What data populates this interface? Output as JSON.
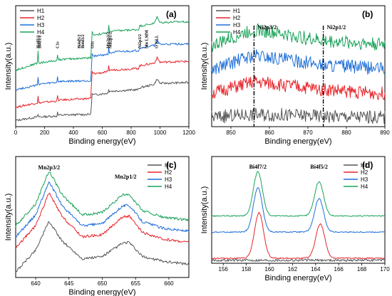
{
  "colors": {
    "H1": "#555555",
    "H2": "#e8242a",
    "H3": "#1f6fd8",
    "H4": "#1aa35a"
  },
  "chart_data": [
    {
      "id": "a",
      "type": "line",
      "panel_label": "(a)",
      "xlabel": "Binding energy(eV)",
      "ylabel": "Intensity(a.u.)",
      "xlim": [
        0,
        1200
      ],
      "xticks": [
        0,
        200,
        400,
        600,
        800,
        1000,
        1200
      ],
      "legend": {
        "placement": "top-left",
        "entries": [
          "H1",
          "H2",
          "H3",
          "H4"
        ]
      },
      "series": [
        {
          "name": "H1",
          "points": [
            [
              0,
              0.05
            ],
            [
              150,
              0.09
            ],
            [
              155,
              0.12
            ],
            [
              160,
              0.09
            ],
            [
              285,
              0.1
            ],
            [
              290,
              0.14
            ],
            [
              295,
              0.11
            ],
            [
              520,
              0.12
            ],
            [
              530,
              0.35
            ],
            [
              540,
              0.34
            ],
            [
              640,
              0.36
            ],
            [
              645,
              0.41
            ],
            [
              650,
              0.38
            ],
            [
              850,
              0.4
            ],
            [
              860,
              0.42
            ],
            [
              960,
              0.46
            ],
            [
              980,
              0.52
            ],
            [
              1000,
              0.47
            ],
            [
              1200,
              0.48
            ]
          ]
        },
        {
          "name": "H2",
          "points": [
            [
              0,
              0.2
            ],
            [
              150,
              0.25
            ],
            [
              155,
              0.32
            ],
            [
              160,
              0.25
            ],
            [
              285,
              0.27
            ],
            [
              290,
              0.33
            ],
            [
              295,
              0.28
            ],
            [
              520,
              0.3
            ],
            [
              530,
              0.6
            ],
            [
              540,
              0.58
            ],
            [
              640,
              0.6
            ],
            [
              645,
              0.66
            ],
            [
              650,
              0.62
            ],
            [
              850,
              0.64
            ],
            [
              860,
              0.67
            ],
            [
              960,
              0.7
            ],
            [
              980,
              0.76
            ],
            [
              1000,
              0.71
            ],
            [
              1200,
              0.72
            ]
          ]
        },
        {
          "name": "H3",
          "points": [
            [
              0,
              0.4
            ],
            [
              150,
              0.45
            ],
            [
              155,
              0.55
            ],
            [
              160,
              0.46
            ],
            [
              285,
              0.48
            ],
            [
              290,
              0.55
            ],
            [
              295,
              0.49
            ],
            [
              520,
              0.5
            ],
            [
              530,
              0.8
            ],
            [
              540,
              0.78
            ],
            [
              640,
              0.8
            ],
            [
              645,
              0.87
            ],
            [
              650,
              0.82
            ],
            [
              850,
              0.84
            ],
            [
              860,
              0.87
            ],
            [
              960,
              0.9
            ],
            [
              980,
              0.96
            ],
            [
              1000,
              0.91
            ],
            [
              1200,
              0.92
            ]
          ]
        },
        {
          "name": "H4",
          "points": [
            [
              0,
              0.62
            ],
            [
              150,
              0.7
            ],
            [
              155,
              0.84
            ],
            [
              160,
              0.7
            ],
            [
              285,
              0.73
            ],
            [
              290,
              0.8
            ],
            [
              295,
              0.74
            ],
            [
              520,
              0.76
            ],
            [
              530,
              1.05
            ],
            [
              540,
              1.02
            ],
            [
              640,
              1.04
            ],
            [
              645,
              1.12
            ],
            [
              650,
              1.06
            ],
            [
              850,
              1.08
            ],
            [
              860,
              1.12
            ],
            [
              960,
              1.15
            ],
            [
              980,
              1.22
            ],
            [
              1000,
              1.16
            ],
            [
              1200,
              1.17
            ]
          ]
        }
      ],
      "annotations": [
        {
          "x": 155,
          "text": "Bi4f7/2"
        },
        {
          "x": 165,
          "text": "Bi4f5/2"
        },
        {
          "x": 290,
          "text": "C1s"
        },
        {
          "x": 440,
          "text": "Bi4d5/2"
        },
        {
          "x": 465,
          "text": "Bi4d3/2"
        },
        {
          "x": 530,
          "text": "O1s"
        },
        {
          "x": 640,
          "text": "Mn2p3/2"
        },
        {
          "x": 655,
          "text": "Mn2p1/2"
        },
        {
          "x": 860,
          "text": "Ni2p3/2"
        },
        {
          "x": 905,
          "text": "Mn LMM"
        },
        {
          "x": 975,
          "text": "O KLL"
        }
      ]
    },
    {
      "id": "b",
      "type": "line",
      "panel_label": "(b)",
      "xlabel": "Binding energy(eV)",
      "ylabel": "Intensity(a.u.)",
      "xlim": [
        845,
        890
      ],
      "xticks": [
        850,
        860,
        870,
        880,
        890
      ],
      "legend": {
        "placement": "top-left",
        "entries": [
          "H1",
          "H2",
          "H3",
          "H4"
        ]
      },
      "series": [
        {
          "name": "H1",
          "points": [
            [
              845,
              0.05
            ],
            [
              856,
              0.08
            ],
            [
              874,
              0.06
            ],
            [
              888,
              0.05
            ]
          ]
        },
        {
          "name": "H2",
          "points": [
            [
              845,
              0.3
            ],
            [
              856,
              0.42
            ],
            [
              874,
              0.34
            ],
            [
              888,
              0.3
            ]
          ]
        },
        {
          "name": "H3",
          "points": [
            [
              845,
              0.55
            ],
            [
              856,
              0.7
            ],
            [
              874,
              0.6
            ],
            [
              888,
              0.56
            ]
          ]
        },
        {
          "name": "H4",
          "points": [
            [
              845,
              0.8
            ],
            [
              856,
              0.97
            ],
            [
              874,
              0.85
            ],
            [
              888,
              0.82
            ]
          ]
        }
      ],
      "annotations": [
        {
          "x": 856,
          "text": "Ni2p3/2"
        },
        {
          "x": 874,
          "text": "Ni2p1/2"
        }
      ]
    },
    {
      "id": "c",
      "type": "line",
      "panel_label": "(c)",
      "xlabel": "Binding energy(eV)",
      "ylabel": "Intensity(a.u.)",
      "xlim": [
        637,
        663
      ],
      "xticks": [
        640,
        645,
        650,
        655,
        660
      ],
      "legend": {
        "placement": "top-right",
        "entries": [
          "H1",
          "H2",
          "H3",
          "H4"
        ]
      },
      "series": [
        {
          "name": "H1",
          "points": [
            [
              637,
              0.0
            ],
            [
              640,
              0.2
            ],
            [
              642,
              0.46
            ],
            [
              644,
              0.28
            ],
            [
              647,
              0.12
            ],
            [
              650,
              0.14
            ],
            [
              653,
              0.26
            ],
            [
              654,
              0.27
            ],
            [
              656,
              0.14
            ],
            [
              659,
              0.1
            ],
            [
              663,
              0.07
            ]
          ]
        },
        {
          "name": "H2",
          "points": [
            [
              637,
              0.22
            ],
            [
              640,
              0.42
            ],
            [
              642,
              0.72
            ],
            [
              644,
              0.5
            ],
            [
              647,
              0.32
            ],
            [
              650,
              0.34
            ],
            [
              653,
              0.5
            ],
            [
              654,
              0.51
            ],
            [
              656,
              0.36
            ],
            [
              659,
              0.3
            ],
            [
              663,
              0.27
            ]
          ]
        },
        {
          "name": "H3",
          "points": [
            [
              637,
              0.32
            ],
            [
              640,
              0.52
            ],
            [
              642,
              0.82
            ],
            [
              644,
              0.6
            ],
            [
              647,
              0.42
            ],
            [
              650,
              0.44
            ],
            [
              653,
              0.6
            ],
            [
              654,
              0.61
            ],
            [
              656,
              0.46
            ],
            [
              659,
              0.4
            ],
            [
              663,
              0.37
            ]
          ]
        },
        {
          "name": "H4",
          "points": [
            [
              637,
              0.42
            ],
            [
              640,
              0.62
            ],
            [
              642,
              0.92
            ],
            [
              644,
              0.7
            ],
            [
              647,
              0.52
            ],
            [
              650,
              0.54
            ],
            [
              653,
              0.7
            ],
            [
              654,
              0.71
            ],
            [
              656,
              0.56
            ],
            [
              659,
              0.5
            ],
            [
              663,
              0.47
            ]
          ]
        }
      ],
      "annotations": [
        {
          "x": 642,
          "text": "Mn2p3/2"
        },
        {
          "x": 653.5,
          "text": "Mn2p1/2"
        }
      ]
    },
    {
      "id": "d",
      "type": "line",
      "panel_label": "(d)",
      "xlabel": "Binding energy(eV)",
      "ylabel": "Intensity(a.u.)",
      "xlim": [
        155,
        170
      ],
      "xticks": [
        156,
        158,
        160,
        162,
        164,
        166,
        168,
        170
      ],
      "legend": {
        "placement": "top-right",
        "entries": [
          "H1",
          "H2",
          "H3",
          "H4"
        ]
      },
      "series": [
        {
          "name": "H1",
          "points": [
            [
              155,
              0.02
            ],
            [
              170,
              0.02
            ]
          ]
        },
        {
          "name": "H2",
          "peaks": [
            [
              159.1,
              0.45
            ],
            [
              164.4,
              0.34
            ]
          ],
          "base": 0.04
        },
        {
          "name": "H3",
          "peaks": [
            [
              159.0,
              0.44
            ],
            [
              164.3,
              0.33
            ]
          ],
          "base": 0.3
        },
        {
          "name": "H4",
          "peaks": [
            [
              159.0,
              0.44
            ],
            [
              164.3,
              0.34
            ]
          ],
          "base": 0.46
        }
      ],
      "annotations": [
        {
          "x": 159.0,
          "text": "Bi4f7/2"
        },
        {
          "x": 164.3,
          "text": "Bi4f5/2"
        }
      ]
    }
  ]
}
